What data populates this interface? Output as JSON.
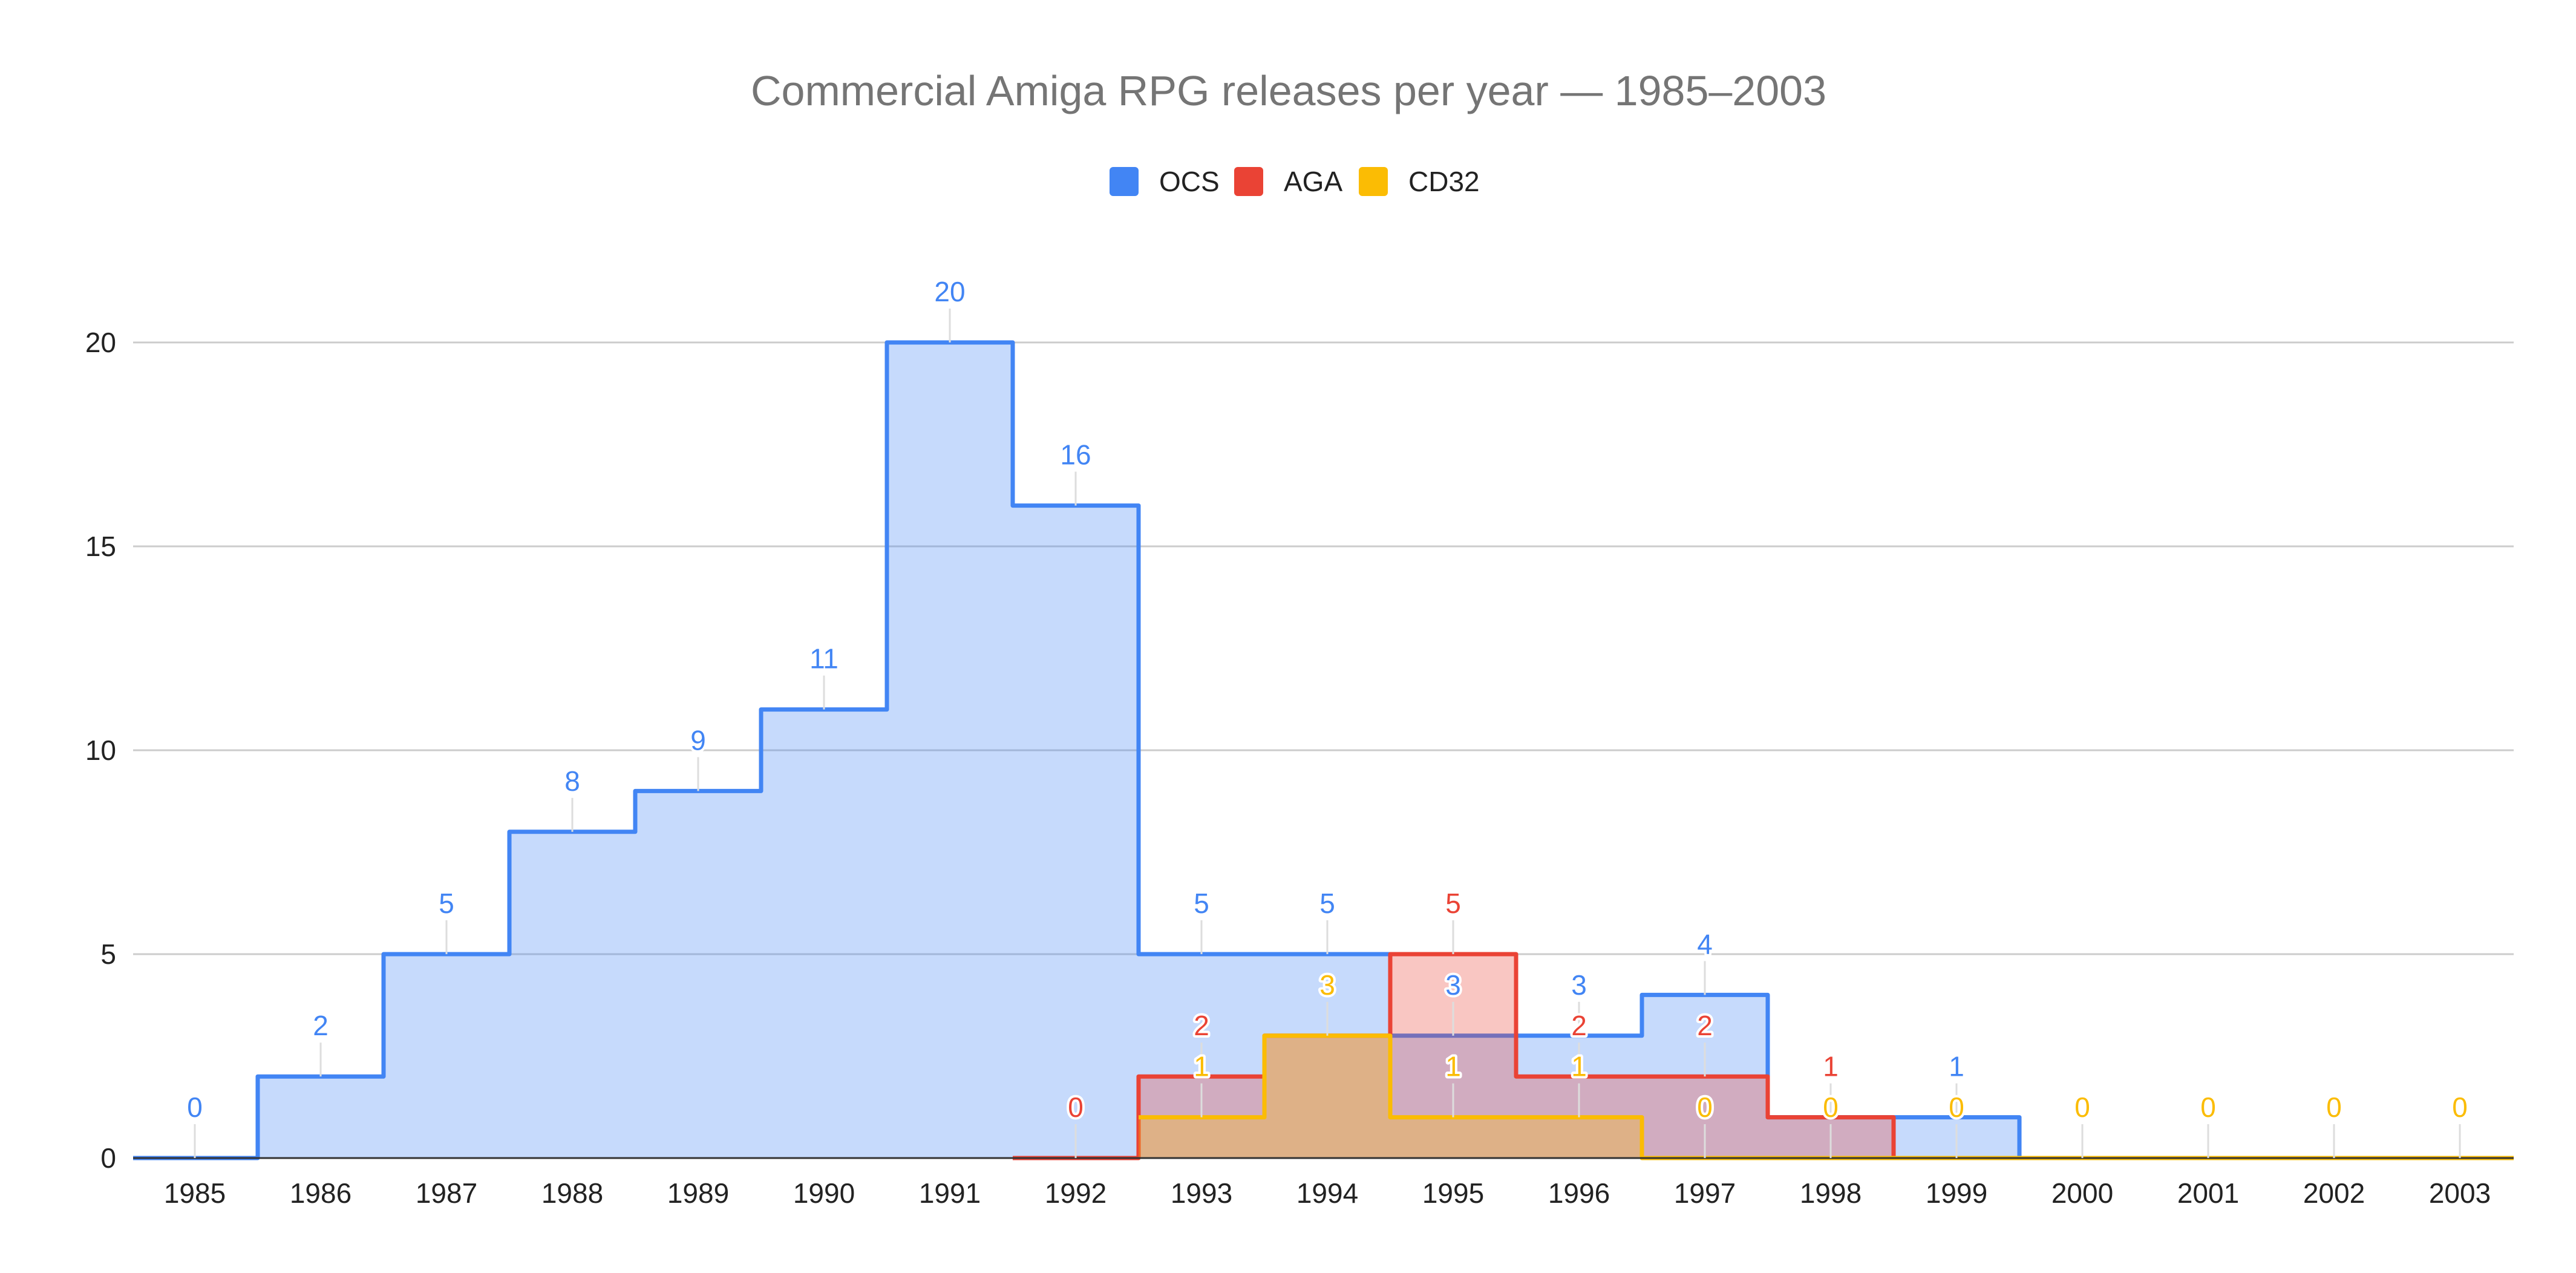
{
  "chart_data": {
    "type": "area",
    "subtype": "stepped-area",
    "title": "Commercial Amiga RPG releases per year — 1985–2003",
    "legend_position": "top",
    "grid": true,
    "ylim": [
      0,
      20
    ],
    "yticks": [
      "0",
      "5",
      "10",
      "15",
      "20"
    ],
    "categories": [
      "1985",
      "1986",
      "1987",
      "1988",
      "1989",
      "1990",
      "1991",
      "1992",
      "1993",
      "1994",
      "1995",
      "1996",
      "1997",
      "1998",
      "1999",
      "2000",
      "2001",
      "2002",
      "2003"
    ],
    "series": [
      {
        "name": "OCS",
        "color": "#4285f4",
        "values": [
          0,
          2,
          5,
          8,
          9,
          11,
          20,
          16,
          5,
          5,
          3,
          3,
          4,
          1,
          1,
          0,
          0,
          0,
          0
        ],
        "labels": [
          "0",
          "2",
          "5",
          "8",
          "9",
          "11",
          "20",
          "16",
          "5",
          "5",
          "3",
          "3",
          "4",
          "",
          "1",
          "",
          "",
          "",
          ""
        ]
      },
      {
        "name": "AGA",
        "color": "#ea4335",
        "values": [
          0,
          0,
          0,
          0,
          0,
          0,
          0,
          0,
          2,
          3,
          5,
          2,
          2,
          1,
          0,
          0,
          0,
          0,
          0
        ],
        "labels": [
          "",
          "",
          "",
          "",
          "",
          "",
          "",
          "0",
          "2",
          "",
          "5",
          "2",
          "2",
          "1",
          "",
          "",
          "",
          "",
          ""
        ]
      },
      {
        "name": "CD32",
        "color": "#fbbc04",
        "values": [
          0,
          0,
          0,
          0,
          0,
          0,
          0,
          0,
          1,
          3,
          1,
          1,
          0,
          0,
          0,
          0,
          0,
          0,
          0
        ],
        "labels": [
          "",
          "",
          "",
          "",
          "",
          "",
          "",
          "",
          "1",
          "3",
          "1",
          "1",
          "0",
          "0",
          "0",
          "0",
          "0",
          "0",
          "0"
        ]
      }
    ]
  }
}
